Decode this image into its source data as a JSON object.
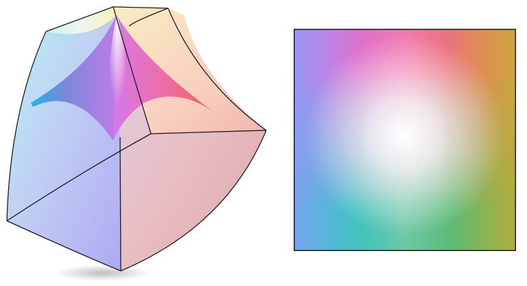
{
  "colors": {
    "top_left": "#c35ff0",
    "top_right": "#e06a2c",
    "bottom_left": "#00b8d8",
    "bottom_right": "#40a830",
    "center": "#ffffff",
    "outline": "#1a1a1a"
  }
}
